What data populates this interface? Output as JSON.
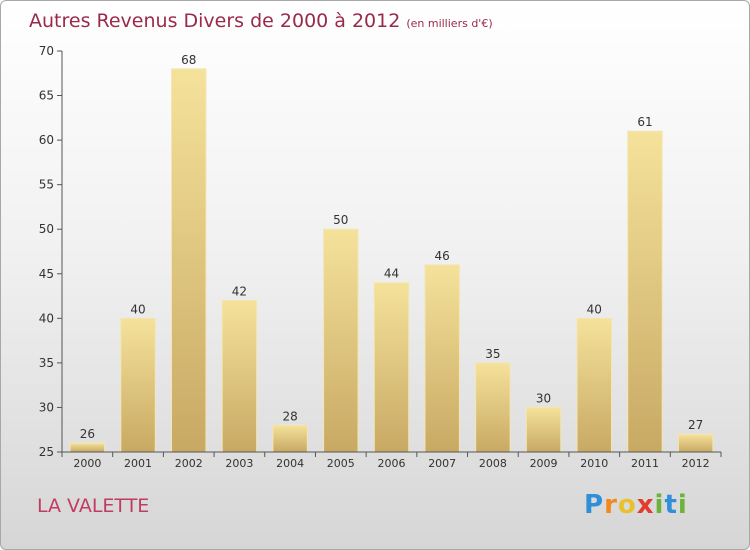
{
  "header": {
    "title": "Autres Revenus Divers de 2000 à 2012",
    "subtitle": "(en milliers d'€)"
  },
  "footer": {
    "town": "LA VALETTE",
    "logo_letters": [
      "P",
      "r",
      "o",
      "x",
      "i",
      "t",
      "i"
    ],
    "logo_colors": [
      "#2f8fd8",
      "#f08a1c",
      "#e8c22c",
      "#e33b2e",
      "#6bb33a",
      "#2f8fd8",
      "#6bb33a"
    ]
  },
  "colors": {
    "title": "#9a2a4a",
    "town": "#c03c62",
    "bar_light": "#f5e29a",
    "bar_dark": "#c8a964",
    "axis_text": "#333333"
  },
  "chart_data": {
    "type": "bar",
    "title": "Autres Revenus Divers de 2000 à 2012",
    "subtitle": "(en milliers d'€)",
    "categories": [
      "2000",
      "2001",
      "2002",
      "2003",
      "2004",
      "2005",
      "2006",
      "2007",
      "2008",
      "2009",
      "2010",
      "2011",
      "2012"
    ],
    "values": [
      26,
      40,
      68,
      42,
      28,
      50,
      44,
      46,
      35,
      30,
      40,
      61,
      27
    ],
    "ylim": [
      25,
      70
    ],
    "yticks": [
      25,
      30,
      35,
      40,
      45,
      50,
      55,
      60,
      65,
      70
    ],
    "grid": false,
    "legend": "none"
  }
}
